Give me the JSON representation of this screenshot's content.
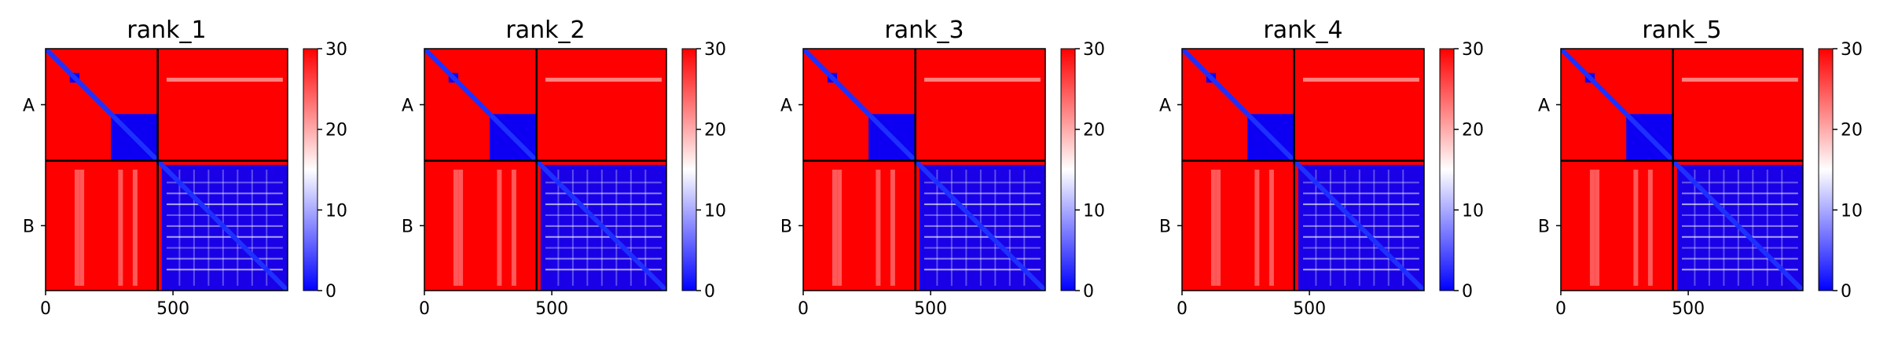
{
  "figure": {
    "colors": {
      "low": "#0000ff",
      "mid": "#ffffff",
      "high": "#ff0000",
      "axis": "#000000"
    }
  },
  "chart_data": [
    {
      "type": "heatmap",
      "title": "rank_1",
      "colormap": "bwr",
      "chain_labels": [
        "A",
        "B"
      ],
      "chain_boundary": 440,
      "matrix_size": 950,
      "x_ticks": [
        0,
        500
      ],
      "xlim": [
        0,
        950
      ],
      "colorbar": {
        "ticks": [
          0,
          10,
          20,
          30
        ],
        "range": [
          0,
          30
        ]
      }
    },
    {
      "type": "heatmap",
      "title": "rank_2",
      "colormap": "bwr",
      "chain_labels": [
        "A",
        "B"
      ],
      "chain_boundary": 440,
      "matrix_size": 950,
      "x_ticks": [
        0,
        500
      ],
      "xlim": [
        0,
        950
      ],
      "colorbar": {
        "ticks": [
          0,
          10,
          20,
          30
        ],
        "range": [
          0,
          30
        ]
      }
    },
    {
      "type": "heatmap",
      "title": "rank_3",
      "colormap": "bwr",
      "chain_labels": [
        "A",
        "B"
      ],
      "chain_boundary": 440,
      "matrix_size": 950,
      "x_ticks": [
        0,
        500
      ],
      "xlim": [
        0,
        950
      ],
      "colorbar": {
        "ticks": [
          0,
          10,
          20,
          30
        ],
        "range": [
          0,
          30
        ]
      }
    },
    {
      "type": "heatmap",
      "title": "rank_4",
      "colormap": "bwr",
      "chain_labels": [
        "A",
        "B"
      ],
      "chain_boundary": 440,
      "matrix_size": 950,
      "x_ticks": [
        0,
        500
      ],
      "xlim": [
        0,
        950
      ],
      "colorbar": {
        "ticks": [
          0,
          10,
          20,
          30
        ],
        "range": [
          0,
          30
        ]
      }
    },
    {
      "type": "heatmap",
      "title": "rank_5",
      "colormap": "bwr",
      "chain_labels": [
        "A",
        "B"
      ],
      "chain_boundary": 440,
      "matrix_size": 950,
      "x_ticks": [
        0,
        500
      ],
      "xlim": [
        0,
        950
      ],
      "colorbar": {
        "ticks": [
          0,
          10,
          20,
          30
        ],
        "range": [
          0,
          30
        ]
      }
    }
  ]
}
